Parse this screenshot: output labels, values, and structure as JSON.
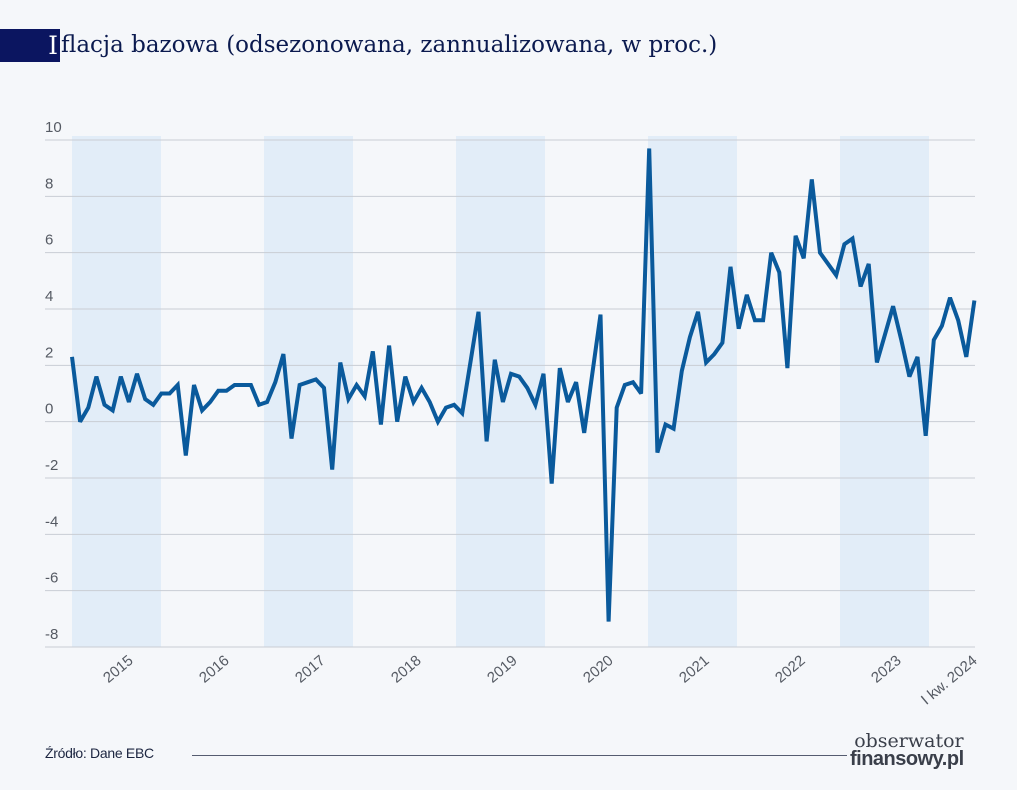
{
  "title": {
    "initial": "I",
    "rest": "flacja bazowa (odsezonowana, zannualizowana, w proc.)"
  },
  "footer": {
    "source": "Źródło: Dane EBC",
    "logo_line1": "obserwator",
    "logo_line2": "finansowy.pl"
  },
  "colors": {
    "line": "#0a5a9c",
    "band": "#e2edf8",
    "grid": "#c9cdd4",
    "title_box": "#0b1560"
  },
  "chart_data": {
    "type": "line",
    "title": "Iflacja bazowa (odsezonowana, zannualizowana, w proc.)",
    "xlabel": "",
    "ylabel": "",
    "ylim": [
      -8,
      10
    ],
    "yticks": [
      "10",
      "8",
      "6",
      "4",
      "2",
      "0",
      "-2",
      "-4",
      "-6",
      "-8"
    ],
    "ytick_values": [
      10,
      8,
      6,
      4,
      2,
      0,
      -2,
      -4,
      -6,
      -8
    ],
    "xtick_labels": [
      "2015",
      "2016",
      "2017",
      "2018",
      "2019",
      "2020",
      "2021",
      "2022",
      "2023",
      "I kw. 2024"
    ],
    "shaded_years": [
      "2015",
      "2017",
      "2019",
      "2021",
      "2023"
    ],
    "grid": true,
    "frequency": "monthly, Jan 2015 – Apr 2024",
    "series": [
      {
        "values": [
          2.3,
          0.0,
          0.5,
          1.6,
          0.6,
          0.4,
          1.6,
          0.7,
          1.7,
          0.8,
          0.6,
          1.0,
          1.0,
          1.3,
          -1.2,
          1.3,
          0.4,
          0.7,
          1.1,
          1.1,
          1.3,
          1.3,
          1.3,
          0.6,
          0.7,
          1.4,
          2.4,
          -0.6,
          1.3,
          1.4,
          1.5,
          1.2,
          -1.7,
          2.1,
          0.8,
          1.3,
          0.9,
          2.5,
          -0.1,
          2.7,
          0.0,
          1.6,
          0.7,
          1.2,
          0.7,
          0.0,
          0.5,
          0.6,
          0.3,
          2.1,
          3.9,
          -0.7,
          2.2,
          0.7,
          1.7,
          1.6,
          1.2,
          0.6,
          1.7,
          -2.2,
          1.9,
          0.7,
          1.4,
          -0.4,
          1.7,
          3.8,
          -7.1,
          0.5,
          1.3,
          1.4,
          1.0,
          9.7,
          -1.1,
          -0.1,
          -0.25,
          1.8,
          3.0,
          3.9,
          2.1,
          2.4,
          2.8,
          5.5,
          3.3,
          4.5,
          3.6,
          3.6,
          6.0,
          5.3,
          1.9,
          6.6,
          5.8,
          8.6,
          6.0,
          5.6,
          5.2,
          6.3,
          6.5,
          4.8,
          5.6,
          2.1,
          3.1,
          4.1,
          2.9,
          1.6,
          2.3,
          -0.5,
          2.9,
          3.4,
          4.4,
          3.6,
          2.3,
          4.3
        ]
      }
    ]
  }
}
